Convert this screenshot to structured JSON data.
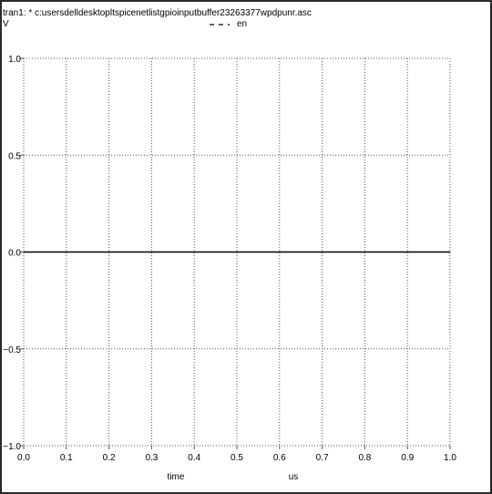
{
  "window": {
    "title": "tran1: * c:usersdelldesktopltspicenetlistgpioinputbuffer23263377wpdpunr.asc"
  },
  "colors": {
    "background": "#ffffff",
    "grid": "#555555",
    "trace": "#000000",
    "frame": "#2a2a2a"
  },
  "chart_data": {
    "type": "line",
    "ylabel": "V",
    "xlabel": "time",
    "xunit": "us",
    "xlim": [
      0.0,
      1.0
    ],
    "ylim": [
      -1.0,
      1.0
    ],
    "xticks": [
      "0.0",
      "0.1",
      "0.2",
      "0.3",
      "0.4",
      "0.5",
      "0.6",
      "0.7",
      "0.8",
      "0.9",
      "1.0"
    ],
    "yticks": [
      "1.0",
      "0.5",
      "0.0",
      "−0.5",
      "−1.0"
    ],
    "grid": true,
    "legend_position": "top-center",
    "series": [
      {
        "name": "en",
        "line_style": "dashed",
        "color": "#000000",
        "x": [
          0.0,
          1.0
        ],
        "y": [
          0.0,
          0.0
        ]
      }
    ]
  }
}
